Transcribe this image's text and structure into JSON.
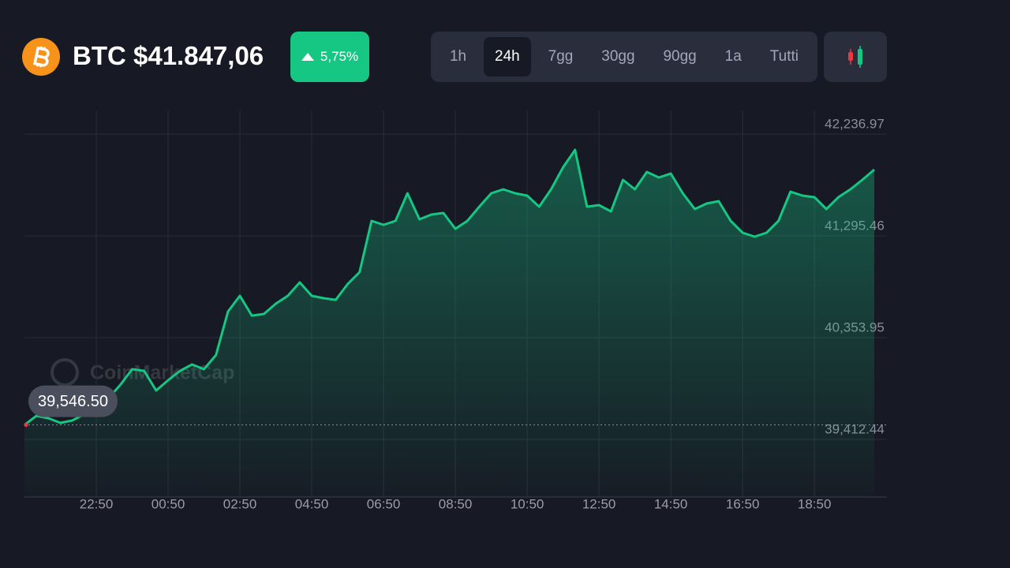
{
  "header": {
    "coin": "BTC",
    "price": "$41.847,06"
  },
  "change": "5,75%",
  "timeframes": [
    "1h",
    "24h",
    "7gg",
    "30gg",
    "90gg",
    "1a",
    "Tutti"
  ],
  "selected_timeframe": "24h",
  "watermark": "CoinMarketCap",
  "chart_data": {
    "type": "area",
    "color": "#16c784",
    "x": [
      null,
      null,
      null,
      null,
      null,
      null,
      "22:50",
      null,
      null,
      null,
      null,
      null,
      "00:50",
      null,
      null,
      null,
      null,
      null,
      "02:50",
      null,
      null,
      null,
      null,
      null,
      "04:50",
      null,
      null,
      null,
      null,
      null,
      "06:50",
      null,
      null,
      null,
      null,
      null,
      "08:50",
      null,
      null,
      null,
      null,
      null,
      "10:50",
      null,
      null,
      null,
      null,
      null,
      "12:50",
      null,
      null,
      null,
      null,
      null,
      "14:50",
      null,
      null,
      null,
      null,
      null,
      "16:50",
      null,
      null,
      null,
      null,
      null,
      "18:50",
      null,
      null,
      null,
      null,
      null
    ],
    "values": [
      39546.5,
      39631,
      39609,
      39566,
      39588,
      39646,
      39682,
      39792,
      39916,
      40062,
      40047,
      39865,
      39960,
      40047,
      40106,
      40062,
      40193,
      40595,
      40741,
      40558,
      40573,
      40668,
      40741,
      40865,
      40741,
      40719,
      40704,
      40850,
      40960,
      41434,
      41398,
      41434,
      41690,
      41449,
      41493,
      41507,
      41361,
      41434,
      41566,
      41690,
      41726,
      41690,
      41668,
      41566,
      41726,
      41930,
      42091,
      41566,
      41580,
      41522,
      41814,
      41726,
      41887,
      41836,
      41872,
      41690,
      41544,
      41595,
      41617,
      41434,
      41325,
      41288,
      41325,
      41434,
      41704,
      41668,
      41653,
      41544,
      41653,
      41726,
      41814,
      41909
    ],
    "ylim": [
      38880,
      42456
    ],
    "yticks": [
      {
        "value": 42236.97,
        "label": "42,236.97"
      },
      {
        "value": 41295.46,
        "label": "41,295.46"
      },
      {
        "value": 40353.95,
        "label": "40,353.95"
      },
      {
        "value": 39412.44,
        "label": "39,412.44"
      }
    ],
    "grid": true,
    "reference_line": {
      "value": 39546.5,
      "label": "39,546.50"
    }
  }
}
